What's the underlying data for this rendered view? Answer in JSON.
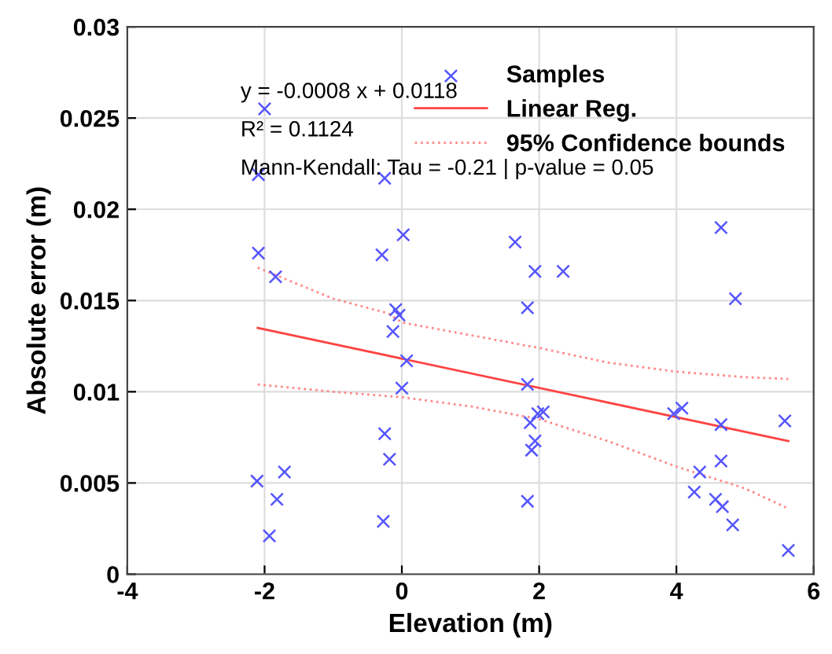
{
  "chart_data": {
    "type": "scatter",
    "xlabel": "Elevation (m)",
    "ylabel": "Absolute error (m)",
    "xlim": [
      -4,
      6
    ],
    "ylim": [
      0,
      0.03
    ],
    "xticks": [
      -4,
      -2,
      0,
      2,
      4,
      6
    ],
    "yticks": [
      0,
      0.005,
      0.01,
      0.015,
      0.02,
      0.025,
      0.03
    ],
    "grid": true,
    "legend": "top right",
    "annotations": [
      "y = -0.0008 x + 0.0118",
      "R² = 0.1124",
      "Mann-Kendall: Tau = -0.21 | p-value = 0.05"
    ],
    "series": [
      {
        "name": "Samples",
        "marker": "cross",
        "color": "#5555ff",
        "x": [
          -2.0,
          -2.09,
          -0.25,
          -2.09,
          -1.84,
          -0.29,
          0.02,
          -0.09,
          -0.04,
          -0.13,
          0.07,
          0.0,
          -0.25,
          -0.18,
          -2.11,
          -1.71,
          -1.82,
          -1.93,
          -0.27,
          1.65,
          1.94,
          2.35,
          1.83,
          1.83,
          1.98,
          2.06,
          1.87,
          1.94,
          1.89,
          1.83,
          4.65,
          4.86,
          3.96,
          4.08,
          4.65,
          5.58,
          4.65,
          4.34,
          4.26,
          4.57,
          4.67,
          4.82,
          5.63
        ],
        "values": [
          0.0255,
          0.0219,
          0.0217,
          0.0176,
          0.0163,
          0.0175,
          0.0186,
          0.0145,
          0.0142,
          0.0133,
          0.0117,
          0.0102,
          0.0077,
          0.0063,
          0.0051,
          0.0056,
          0.0041,
          0.0021,
          0.0029,
          0.0182,
          0.0166,
          0.0166,
          0.0146,
          0.0104,
          0.0088,
          0.0089,
          0.0083,
          0.0073,
          0.0068,
          0.004,
          0.019,
          0.0151,
          0.0088,
          0.0091,
          0.0082,
          0.0084,
          0.0062,
          0.0056,
          0.0045,
          0.0041,
          0.0037,
          0.0027,
          0.0013
        ]
      },
      {
        "name": "Linear Reg.",
        "type": "line",
        "line_style": "solid",
        "color": "#ff4444",
        "x": [
          -2.1,
          5.63
        ],
        "values": [
          0.0135,
          0.0073
        ]
      },
      {
        "name": "95% Confidence bounds",
        "type": "line",
        "line_style": "dotted",
        "color": "#ff8888",
        "x": [
          -2.1,
          -1,
          -0.2,
          0,
          1,
          2,
          3,
          4,
          5,
          5.63
        ],
        "values": [
          0.0168,
          0.0151,
          0.0143,
          0.0138,
          0.0131,
          0.0124,
          0.0116,
          0.0111,
          0.0108,
          0.0107
        ]
      },
      {
        "type": "line",
        "line_style": "dotted",
        "color": "#ff8888",
        "x": [
          -2.1,
          -1,
          0,
          1,
          2,
          3,
          4,
          5,
          5.63
        ],
        "values": [
          0.0104,
          0.01,
          0.0097,
          0.0092,
          0.0085,
          0.0073,
          0.0059,
          0.0047,
          0.0036
        ]
      }
    ]
  }
}
